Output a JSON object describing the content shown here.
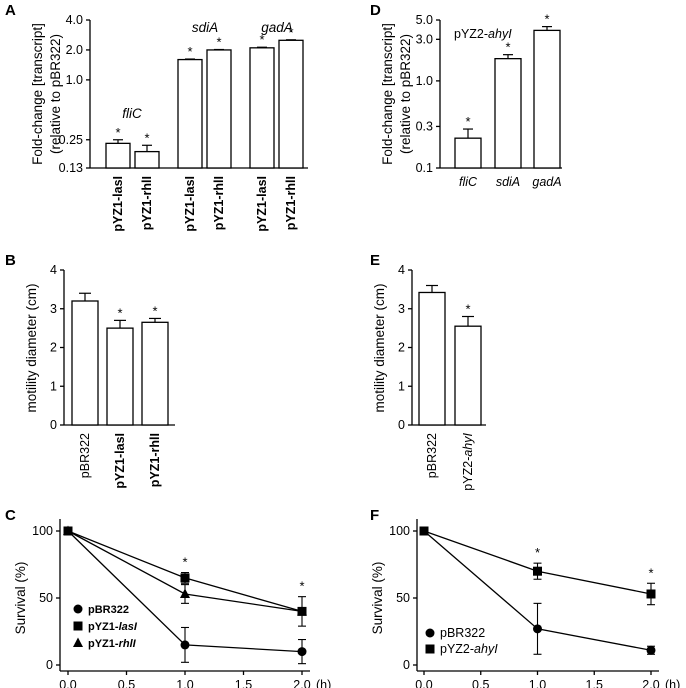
{
  "chart_data": [
    {
      "panel": "A",
      "type": "bar",
      "yscale": "log",
      "ylabel_lines": [
        "Fold-change [transcript]",
        "(relative to pBR322)"
      ],
      "yticks": [
        "0.13",
        "0.25",
        "1.0",
        "2.0",
        "4.0"
      ],
      "ylim": [
        0.13,
        4.0
      ],
      "genes": [
        "fliC",
        "sdiA",
        "gadA"
      ],
      "categories": [
        {
          "pre": "pYZ1-",
          "gene": "lasI"
        },
        {
          "pre": "pYZ1-",
          "gene": "rhlI"
        },
        {
          "pre": "pYZ1-",
          "gene": "lasI"
        },
        {
          "pre": "pYZ1-",
          "gene": "rhlI"
        },
        {
          "pre": "pYZ1-",
          "gene": "lasI"
        },
        {
          "pre": "pYZ1-",
          "gene": "rhlI"
        }
      ],
      "values": [
        0.23,
        0.19,
        1.6,
        2.0,
        2.1,
        2.5
      ],
      "errors": [
        0.02,
        0.03,
        0.02,
        0.02,
        0.03,
        0.03
      ],
      "significance": [
        "*",
        "*",
        "*",
        "*",
        "*",
        "*"
      ]
    },
    {
      "panel": "B",
      "type": "bar",
      "ylabel": "motility diameter (cm)",
      "yticks": [
        "0",
        "1",
        "2",
        "3",
        "4"
      ],
      "ylim": [
        0,
        4
      ],
      "categories": [
        {
          "pre": "pBR322",
          "gene": ""
        },
        {
          "pre": "pYZ1-",
          "gene": "lasI"
        },
        {
          "pre": "pYZ1-",
          "gene": "rhlI"
        }
      ],
      "values": [
        3.2,
        2.5,
        2.65
      ],
      "errors": [
        0.2,
        0.2,
        0.1
      ],
      "significance": [
        "",
        "*",
        "*"
      ]
    },
    {
      "panel": "C",
      "type": "line",
      "ylabel": "Survival (%)",
      "xticks": [
        "0.0",
        "0.5",
        "1.0",
        "1.5",
        "2.0"
      ],
      "xunit": "(h)",
      "yticks": [
        "0",
        "50",
        "100"
      ],
      "xlim": [
        0,
        2
      ],
      "ylim": [
        0,
        100
      ],
      "series": [
        {
          "pre": "pBR322",
          "gene": "",
          "marker": "circle",
          "x": [
            0,
            1,
            2
          ],
          "y": [
            100,
            15,
            10
          ],
          "err": [
            0,
            13,
            9
          ]
        },
        {
          "pre": "pYZ1-",
          "gene": "lasI",
          "marker": "square",
          "x": [
            0,
            1,
            2
          ],
          "y": [
            100,
            65,
            40
          ],
          "err": [
            0,
            4,
            11
          ]
        },
        {
          "pre": "pYZ1-",
          "gene": "rhlI",
          "marker": "triangle",
          "x": [
            0,
            1,
            2
          ],
          "y": [
            100,
            53,
            40
          ],
          "err": [
            0,
            7,
            0
          ]
        }
      ],
      "significance": [
        {
          "x": 1,
          "label": "*"
        },
        {
          "x": 2,
          "label": "*"
        }
      ]
    },
    {
      "panel": "D",
      "type": "bar",
      "yscale": "log",
      "ylabel_lines": [
        "Fold-change [transcript]",
        "(relative to pBR322)"
      ],
      "yticks": [
        "0.1",
        "0.3",
        "1.0",
        "3.0",
        "5.0"
      ],
      "ylim": [
        0.1,
        5.0
      ],
      "title": {
        "pre": "pYZ2-",
        "gene": "ahyI"
      },
      "categories": [
        "fliC",
        "sdiA",
        "gadA"
      ],
      "values": [
        0.22,
        1.8,
        3.8
      ],
      "errors": [
        0.06,
        0.2,
        0.4
      ],
      "significance": [
        "*",
        "*",
        "*"
      ]
    },
    {
      "panel": "E",
      "type": "bar",
      "ylabel": "motility diameter (cm)",
      "yticks": [
        "0",
        "1",
        "2",
        "3",
        "4"
      ],
      "ylim": [
        0,
        4
      ],
      "categories": [
        {
          "pre": "pBR322",
          "gene": ""
        },
        {
          "pre": "pYZ2-",
          "gene": "ahyI"
        }
      ],
      "values": [
        3.42,
        2.55
      ],
      "errors": [
        0.18,
        0.25
      ],
      "significance": [
        "",
        "*"
      ]
    },
    {
      "panel": "F",
      "type": "line",
      "ylabel": "Survival (%)",
      "xticks": [
        "0.0",
        "0.5",
        "1.0",
        "1.5",
        "2.0"
      ],
      "xunit": "(h)",
      "yticks": [
        "0",
        "50",
        "100"
      ],
      "xlim": [
        0,
        2
      ],
      "ylim": [
        0,
        100
      ],
      "series": [
        {
          "pre": "pBR322",
          "gene": "",
          "marker": "circle",
          "x": [
            0,
            1,
            2
          ],
          "y": [
            100,
            27,
            11
          ],
          "err": [
            0,
            19,
            3
          ]
        },
        {
          "pre": "pYZ2-",
          "gene": "ahyI",
          "marker": "square",
          "x": [
            0,
            1,
            2
          ],
          "y": [
            100,
            70,
            53
          ],
          "err": [
            0,
            6,
            8
          ]
        }
      ],
      "significance": [
        {
          "x": 1,
          "label": "*"
        },
        {
          "x": 2,
          "label": "*"
        }
      ]
    }
  ]
}
